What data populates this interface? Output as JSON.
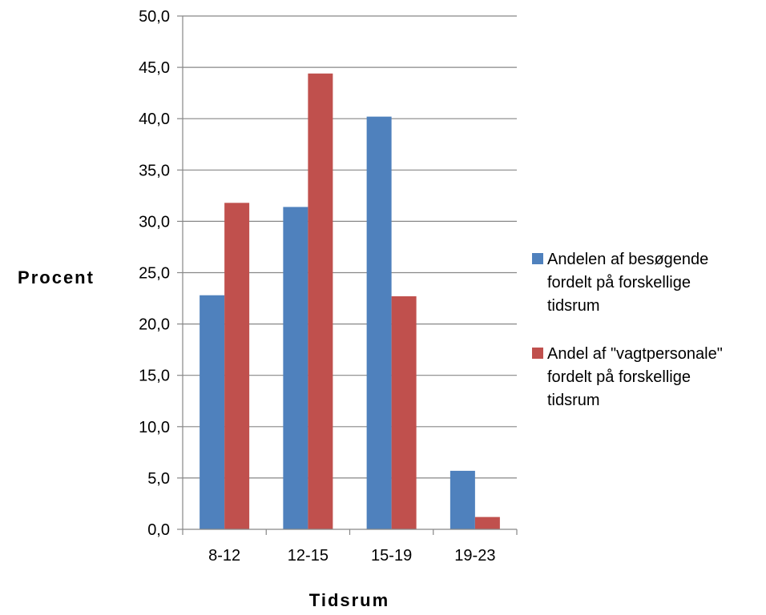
{
  "chart_data": {
    "type": "bar",
    "title": "",
    "xlabel": "Tidsrum",
    "ylabel": "Procent",
    "categories": [
      "8-12",
      "12-15",
      "15-19",
      "19-23"
    ],
    "series": [
      {
        "name": "Andelen af besøgende fordelt på forskellige tidsrum",
        "legend_lines": [
          "Andelen af besøgende",
          "fordelt på forskellige",
          "tidsrum"
        ],
        "color": "#4F81BD",
        "values": [
          22.8,
          31.4,
          40.2,
          5.7
        ]
      },
      {
        "name": "Andel af \"vagtpersonale\" fordelt på forskellige tidsrum",
        "legend_lines": [
          "Andel af \"vagtpersonale\"",
          "fordelt på forskellige",
          "tidsrum"
        ],
        "color": "#C0504D",
        "values": [
          31.8,
          44.4,
          22.7,
          1.2
        ]
      }
    ],
    "ylim": [
      0,
      50
    ],
    "yticks": [
      "0,0",
      "5,0",
      "10,0",
      "15,0",
      "20,0",
      "25,0",
      "30,0",
      "35,0",
      "40,0",
      "45,0",
      "50,0"
    ],
    "grid": true,
    "legend_position": "right"
  }
}
